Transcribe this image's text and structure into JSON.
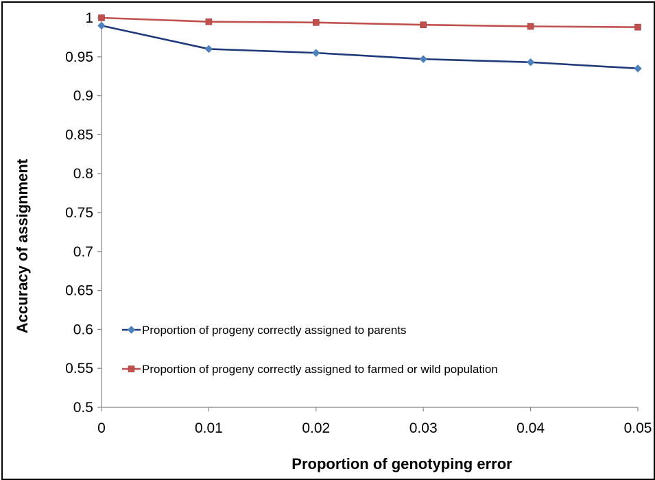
{
  "chart_data": {
    "type": "line",
    "xlabel": "Proportion of genotyping error",
    "ylabel": "Accuracy of assignment",
    "x": [
      0,
      0.01,
      0.02,
      0.03,
      0.04,
      0.05
    ],
    "x_tick_labels": [
      "0",
      "0.01",
      "0.02",
      "0.03",
      "0.04",
      "0.05"
    ],
    "y_tick_labels": [
      "0.5",
      "0.55",
      "0.6",
      "0.65",
      "0.7",
      "0.75",
      "0.8",
      "0.85",
      "0.9",
      "0.95",
      "1"
    ],
    "xlim": [
      0,
      0.05
    ],
    "ylim": [
      0.5,
      1
    ],
    "grid": false,
    "legend_position": "lower-left inside plot",
    "series": [
      {
        "name": "Proportion of progeny correctly assigned to parents",
        "values": [
          0.99,
          0.96,
          0.955,
          0.947,
          0.943,
          0.935
        ],
        "color": "#1F3A7A",
        "marker_color": "#4F81BD",
        "marker": "diamond"
      },
      {
        "name": "Proportion of progeny correctly assigned to farmed or wild population",
        "values": [
          1.0,
          0.995,
          0.994,
          0.991,
          0.989,
          0.988
        ],
        "color": "#C0504D",
        "marker_color": "#C0504D",
        "marker": "square"
      }
    ]
  }
}
